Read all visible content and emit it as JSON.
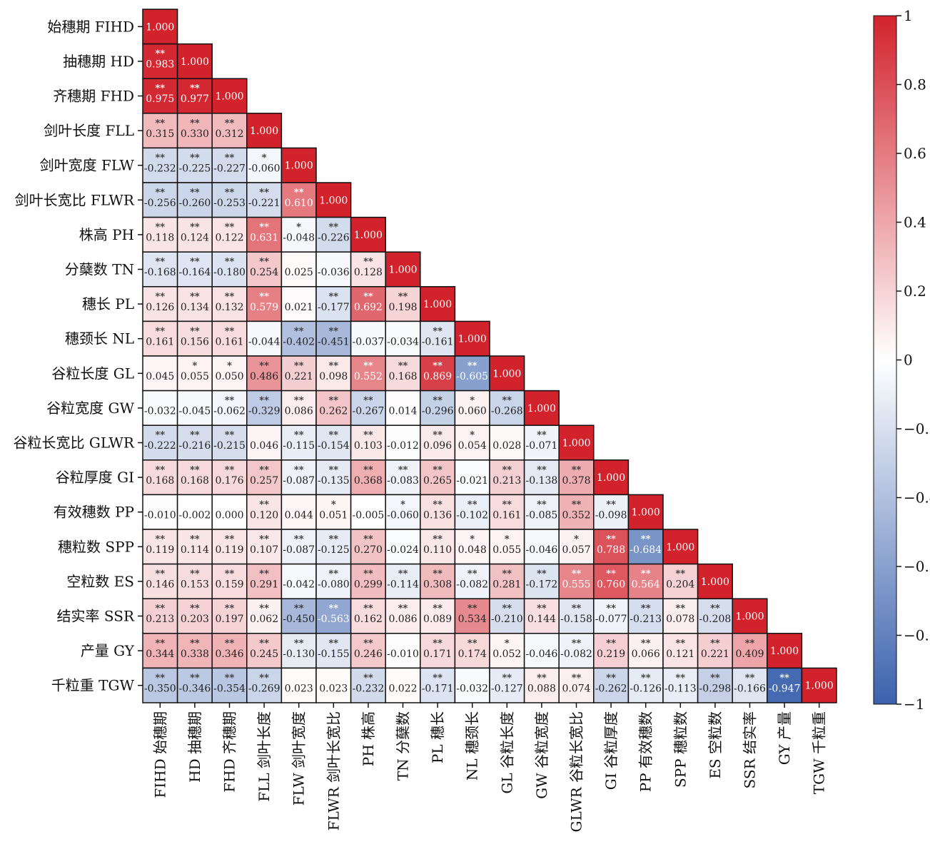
{
  "chart_data": {
    "type": "heatmap",
    "title": "",
    "xlabel": "",
    "ylabel": "",
    "row_labels": [
      "始穗期 FIHD",
      "抽穗期 HD",
      "齐穗期 FHD",
      "剑叶长度 FLL",
      "剑叶宽度 FLW",
      "剑叶长宽比 FLWR",
      "株高 PH",
      "分蘖数 TN",
      "穗长 PL",
      "穗颈长 NL",
      "谷粒长度 GL",
      "谷粒宽度 GW",
      "谷粒长宽比 GLWR",
      "谷粒厚度 GI",
      "有效穗数 PP",
      "穗粒数 SPP",
      "空粒数 ES",
      "结实率 SSR",
      "产量 GY",
      "千粒重 TGW"
    ],
    "col_labels": [
      "FIHD 始穗期",
      "HD 抽穗期",
      "FHD 齐穗期",
      "FLL 剑叶长度",
      "FLW 剑叶宽度",
      "FLWR 剑叶长宽比",
      "PH 株高",
      "TN 分蘖数",
      "PL 穗长",
      "NL 穗颈长",
      "GL 谷粒长度",
      "GW 谷粒宽度",
      "GLWR 谷粒长宽比",
      "GI 谷粒厚度",
      "PP 有效穗数",
      "SPP 穗粒数",
      "ES 空粒数",
      "SSR 结实率",
      "GY 产量",
      "TGW 千粒重"
    ],
    "values": [
      [
        1.0
      ],
      [
        0.983,
        1.0
      ],
      [
        0.975,
        0.977,
        1.0
      ],
      [
        0.315,
        0.33,
        0.312,
        1.0
      ],
      [
        -0.232,
        -0.225,
        -0.227,
        -0.06,
        1.0
      ],
      [
        -0.256,
        -0.26,
        -0.253,
        -0.221,
        0.61,
        1.0
      ],
      [
        0.118,
        0.124,
        0.122,
        0.631,
        -0.048,
        -0.226,
        1.0
      ],
      [
        -0.168,
        -0.164,
        -0.18,
        0.254,
        0.025,
        -0.036,
        0.128,
        1.0
      ],
      [
        0.126,
        0.134,
        0.132,
        0.579,
        0.021,
        -0.177,
        0.692,
        0.198,
        1.0
      ],
      [
        0.161,
        0.156,
        0.161,
        -0.044,
        -0.402,
        -0.451,
        -0.037,
        -0.034,
        -0.161,
        1.0
      ],
      [
        0.045,
        0.055,
        0.05,
        0.486,
        0.221,
        0.098,
        0.552,
        0.168,
        0.869,
        -0.605,
        1.0
      ],
      [
        -0.032,
        -0.045,
        -0.062,
        -0.329,
        0.086,
        0.262,
        -0.267,
        0.014,
        -0.296,
        0.06,
        -0.268,
        1.0
      ],
      [
        -0.222,
        -0.216,
        -0.215,
        0.046,
        -0.115,
        -0.154,
        0.103,
        -0.012,
        0.096,
        0.054,
        0.028,
        -0.071,
        1.0
      ],
      [
        0.168,
        0.168,
        0.176,
        0.257,
        -0.087,
        -0.135,
        0.368,
        -0.083,
        0.265,
        -0.021,
        0.213,
        -0.138,
        0.378,
        1.0
      ],
      [
        -0.01,
        -0.002,
        0.0,
        0.12,
        0.044,
        0.051,
        -0.005,
        -0.06,
        0.136,
        -0.102,
        0.161,
        -0.085,
        0.352,
        -0.098,
        1.0
      ],
      [
        0.119,
        0.114,
        0.119,
        0.107,
        -0.087,
        -0.125,
        0.27,
        -0.024,
        0.11,
        0.048,
        0.055,
        -0.046,
        0.057,
        0.788,
        -0.684,
        1.0
      ],
      [
        0.146,
        0.153,
        0.159,
        0.291,
        -0.042,
        -0.08,
        0.299,
        -0.114,
        0.308,
        -0.082,
        0.281,
        -0.172,
        0.555,
        0.76,
        0.564,
        0.204,
        1.0
      ],
      [
        0.213,
        0.203,
        0.197,
        0.062,
        -0.45,
        -0.563,
        0.162,
        0.086,
        0.089,
        0.534,
        -0.21,
        0.144,
        -0.158,
        -0.077,
        -0.213,
        0.078,
        -0.208,
        1.0
      ],
      [
        0.344,
        0.338,
        0.346,
        0.245,
        -0.13,
        -0.155,
        0.246,
        -0.01,
        0.171,
        0.174,
        0.052,
        -0.046,
        -0.082,
        0.219,
        0.066,
        0.121,
        0.221,
        0.409,
        1.0
      ],
      [
        -0.35,
        -0.346,
        -0.354,
        -0.269,
        0.023,
        0.023,
        -0.232,
        0.022,
        -0.171,
        -0.032,
        -0.127,
        0.088,
        0.074,
        -0.262,
        -0.126,
        -0.113,
        -0.298,
        -0.166,
        -0.947,
        1.0
      ]
    ],
    "significance": [
      [
        ""
      ],
      [
        "**",
        ""
      ],
      [
        "**",
        "**",
        ""
      ],
      [
        "**",
        "**",
        "**",
        ""
      ],
      [
        "**",
        "**",
        "**",
        "*",
        ""
      ],
      [
        "**",
        "**",
        "**",
        "**",
        "**",
        ""
      ],
      [
        "**",
        "**",
        "**",
        "**",
        "*",
        "**",
        ""
      ],
      [
        "**",
        "**",
        "**",
        "**",
        "",
        "",
        "**",
        ""
      ],
      [
        "**",
        "**",
        "**",
        "**",
        "",
        "**",
        "**",
        "**",
        ""
      ],
      [
        "**",
        "**",
        "**",
        "",
        "**",
        "**",
        "",
        "",
        "**",
        ""
      ],
      [
        "",
        "*",
        "*",
        "**",
        "**",
        "**",
        "**",
        "**",
        "**",
        "**",
        ""
      ],
      [
        "",
        "",
        "**",
        "**",
        "**",
        "**",
        "**",
        "",
        "**",
        "*",
        "**",
        ""
      ],
      [
        "**",
        "**",
        "**",
        "",
        "**",
        "**",
        "**",
        "",
        "**",
        "*",
        "",
        "**",
        ""
      ],
      [
        "**",
        "**",
        "**",
        "**",
        "**",
        "**",
        "**",
        "**",
        "**",
        "",
        "**",
        "**",
        "**",
        ""
      ],
      [
        "",
        "",
        "",
        "**",
        "",
        "*",
        "",
        "*",
        "**",
        "**",
        "**",
        "**",
        "**",
        "**",
        ""
      ],
      [
        "**",
        "**",
        "**",
        "**",
        "**",
        "**",
        "**",
        "",
        "**",
        "*",
        "*",
        "",
        "*",
        "**",
        "**",
        ""
      ],
      [
        "**",
        "**",
        "**",
        "**",
        "",
        "**",
        "**",
        "**",
        "**",
        "**",
        "**",
        "**",
        "**",
        "**",
        "**",
        "**",
        ""
      ],
      [
        "**",
        "**",
        "**",
        "**",
        "**",
        "**",
        "**",
        "**",
        "**",
        "**",
        "**",
        "**",
        "**",
        "**",
        "**",
        "**",
        "**",
        ""
      ],
      [
        "**",
        "**",
        "**",
        "**",
        "**",
        "**",
        "**",
        "",
        "**",
        "**",
        "*",
        "",
        "**",
        "**",
        "**",
        "**",
        "**",
        "**",
        ""
      ],
      [
        "**",
        "**",
        "**",
        "**",
        "",
        "",
        "**",
        "",
        "**",
        "",
        "**",
        "**",
        "**",
        "**",
        "**",
        "**",
        "**",
        "**",
        "**",
        ""
      ]
    ],
    "colorbar": {
      "range": [
        -1,
        1
      ],
      "ticks": [
        "1",
        "0.8",
        "0.6",
        "0.4",
        "0.2",
        "0",
        "−0.2",
        "−0.4",
        "−0.6",
        "−0.8",
        "−1"
      ],
      "colors": {
        "negative": "#3b62ad",
        "neutral": "#ffffff",
        "positive": "#d2232d"
      }
    },
    "grid": false,
    "legend": "colorbar-right"
  }
}
